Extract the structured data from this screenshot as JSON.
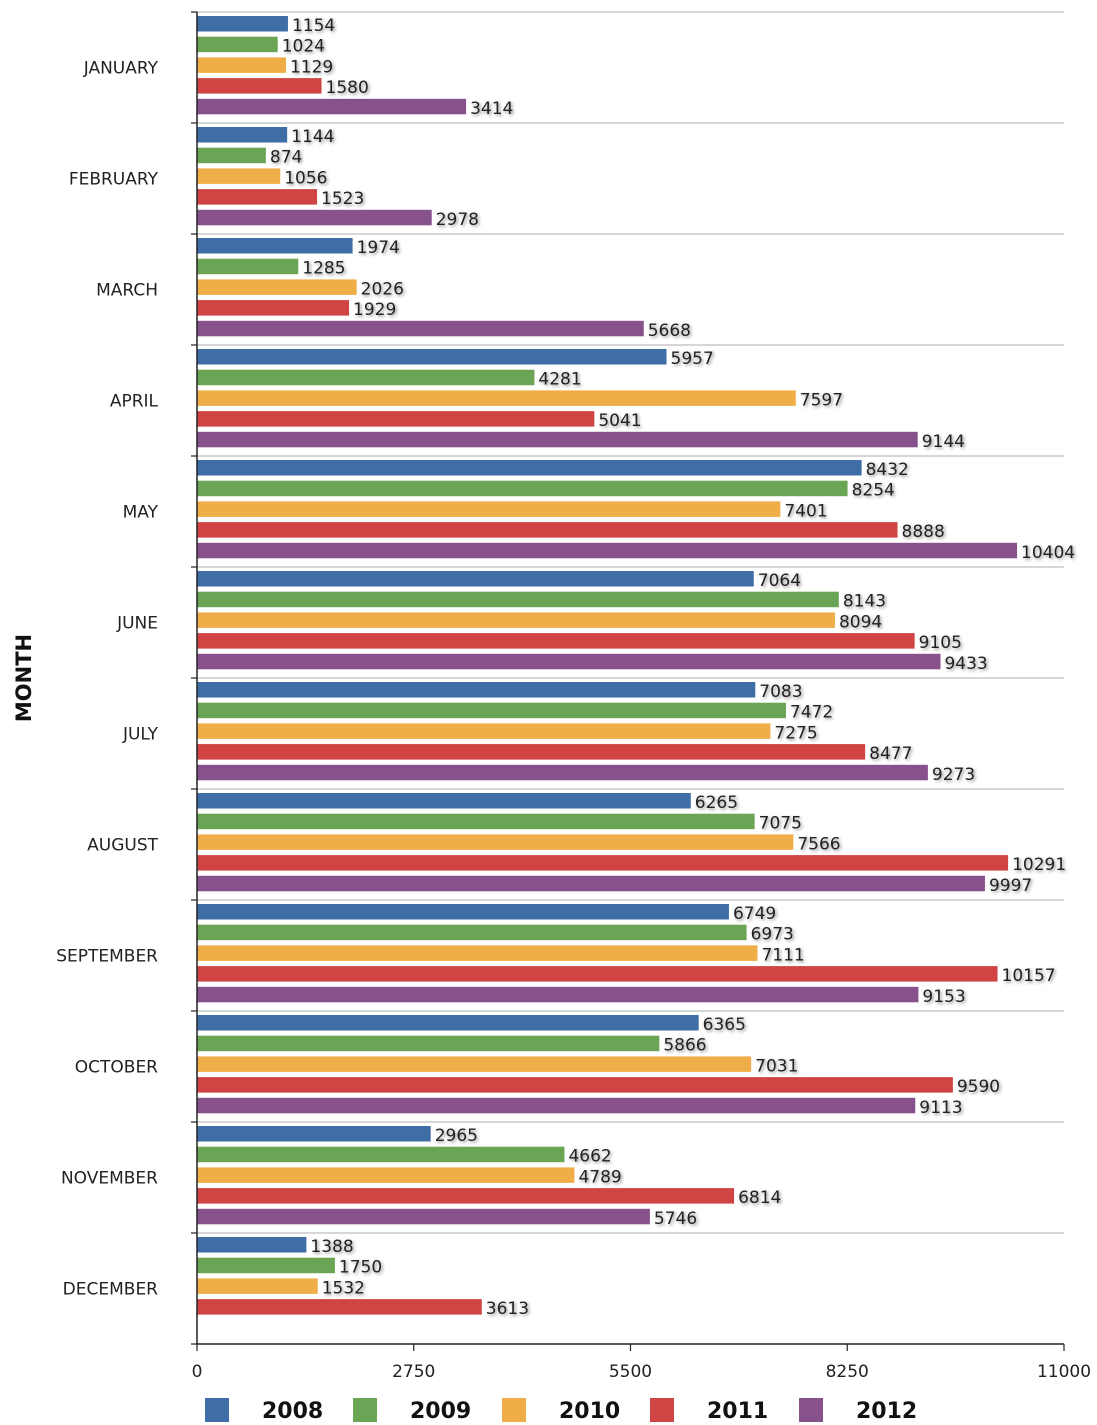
{
  "chart_data": {
    "type": "bar",
    "orientation": "horizontal",
    "ylabel": "MONTH",
    "xlabel": "",
    "xlim": [
      0,
      11000
    ],
    "xticks": [
      "0",
      "2750",
      "5500",
      "8250",
      "11000"
    ],
    "categories": [
      "JANUARY",
      "FEBRUARY",
      "MARCH",
      "APRIL",
      "MAY",
      "JUNE",
      "JULY",
      "AUGUST",
      "SEPTEMBER",
      "OCTOBER",
      "NOVEMBER",
      "DECEMBER"
    ],
    "series": [
      {
        "name": "2008",
        "color": "#3e6ea5",
        "values": [
          1154,
          1144,
          1974,
          5957,
          8432,
          7064,
          7083,
          6265,
          6749,
          6365,
          2965,
          1388
        ]
      },
      {
        "name": "2009",
        "color": "#6aa455",
        "values": [
          1024,
          874,
          1285,
          4281,
          8254,
          8143,
          7472,
          7075,
          6973,
          5866,
          4662,
          1750
        ]
      },
      {
        "name": "2010",
        "color": "#f0ae48",
        "values": [
          1129,
          1056,
          2026,
          7597,
          7401,
          8094,
          7275,
          7566,
          7111,
          7031,
          4789,
          1532
        ]
      },
      {
        "name": "2011",
        "color": "#d04444",
        "values": [
          1580,
          1523,
          1929,
          5041,
          8888,
          9105,
          8477,
          10291,
          10157,
          9590,
          6814,
          3613
        ]
      },
      {
        "name": "2012",
        "color": "#87528c",
        "values": [
          3414,
          2978,
          5668,
          9144,
          10404,
          9433,
          9273,
          9997,
          9153,
          9113,
          5746,
          null
        ]
      }
    ],
    "grid": true,
    "legend_position": "bottom"
  }
}
